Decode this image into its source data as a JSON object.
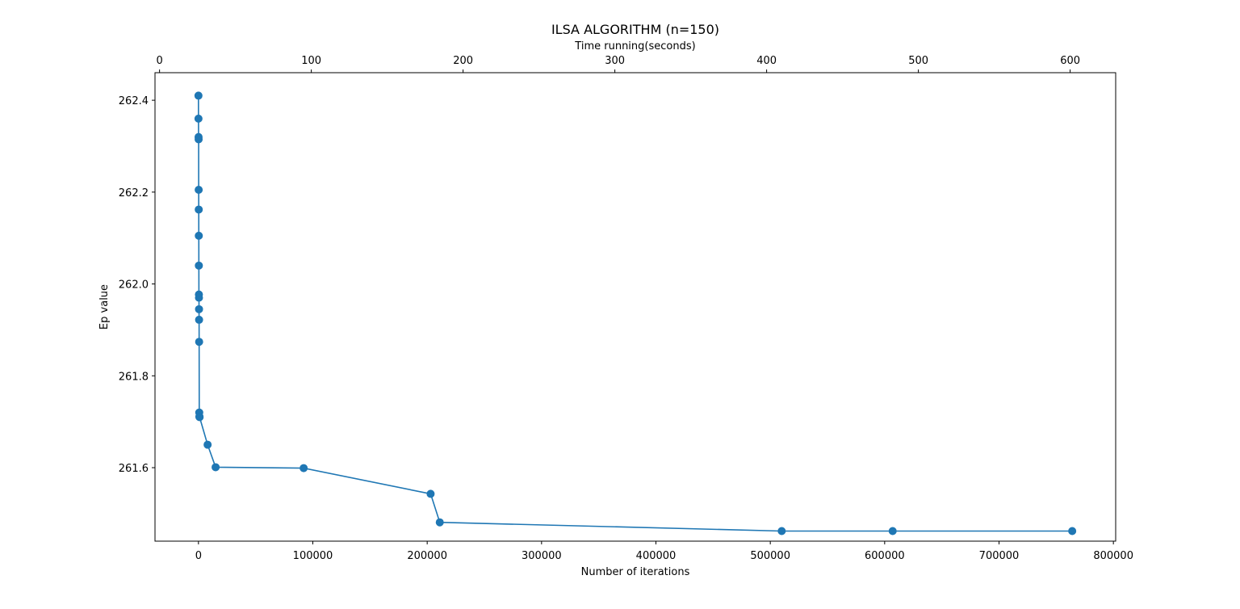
{
  "chart_data": {
    "type": "line",
    "title": "ILSA ALGORITHM (n=150)",
    "xlabel": "Number of iterations",
    "ylabel": "Ep value",
    "x2label": "Time running(seconds)",
    "xlim": [
      -38000,
      802000
    ],
    "ylim": [
      261.44,
      262.46
    ],
    "x2lim": [
      -3,
      630
    ],
    "x_ticks": [
      0,
      100000,
      200000,
      300000,
      400000,
      500000,
      600000,
      700000,
      800000
    ],
    "x_tick_labels": [
      "0",
      "100000",
      "200000",
      "300000",
      "400000",
      "500000",
      "600000",
      "700000",
      "800000"
    ],
    "x2_ticks": [
      0,
      100,
      200,
      300,
      400,
      500,
      600
    ],
    "x2_tick_labels": [
      "0",
      "100",
      "200",
      "300",
      "400",
      "500",
      "600"
    ],
    "y_ticks": [
      261.6,
      261.8,
      262.0,
      262.2,
      262.4
    ],
    "y_tick_labels": [
      "261.6",
      "261.8",
      "262.0",
      "262.2",
      "262.4"
    ],
    "grid": false,
    "color": "#1f77b4",
    "marker": "circle",
    "series": [
      {
        "x": [
          0,
          20,
          100,
          150,
          200,
          250,
          300,
          350,
          400,
          450,
          500,
          550,
          600,
          700,
          800,
          900,
          1000,
          8000,
          15000,
          92000,
          203000,
          211000,
          510000,
          607000,
          764000
        ],
        "y": [
          262.41,
          262.36,
          262.32,
          262.315,
          262.205,
          262.162,
          262.105,
          262.04,
          261.977,
          261.97,
          261.945,
          261.922,
          261.874,
          261.72,
          261.711,
          261.711,
          261.71,
          261.65,
          261.601,
          261.599,
          261.543,
          261.481,
          261.462,
          261.462,
          261.462
        ]
      }
    ]
  }
}
